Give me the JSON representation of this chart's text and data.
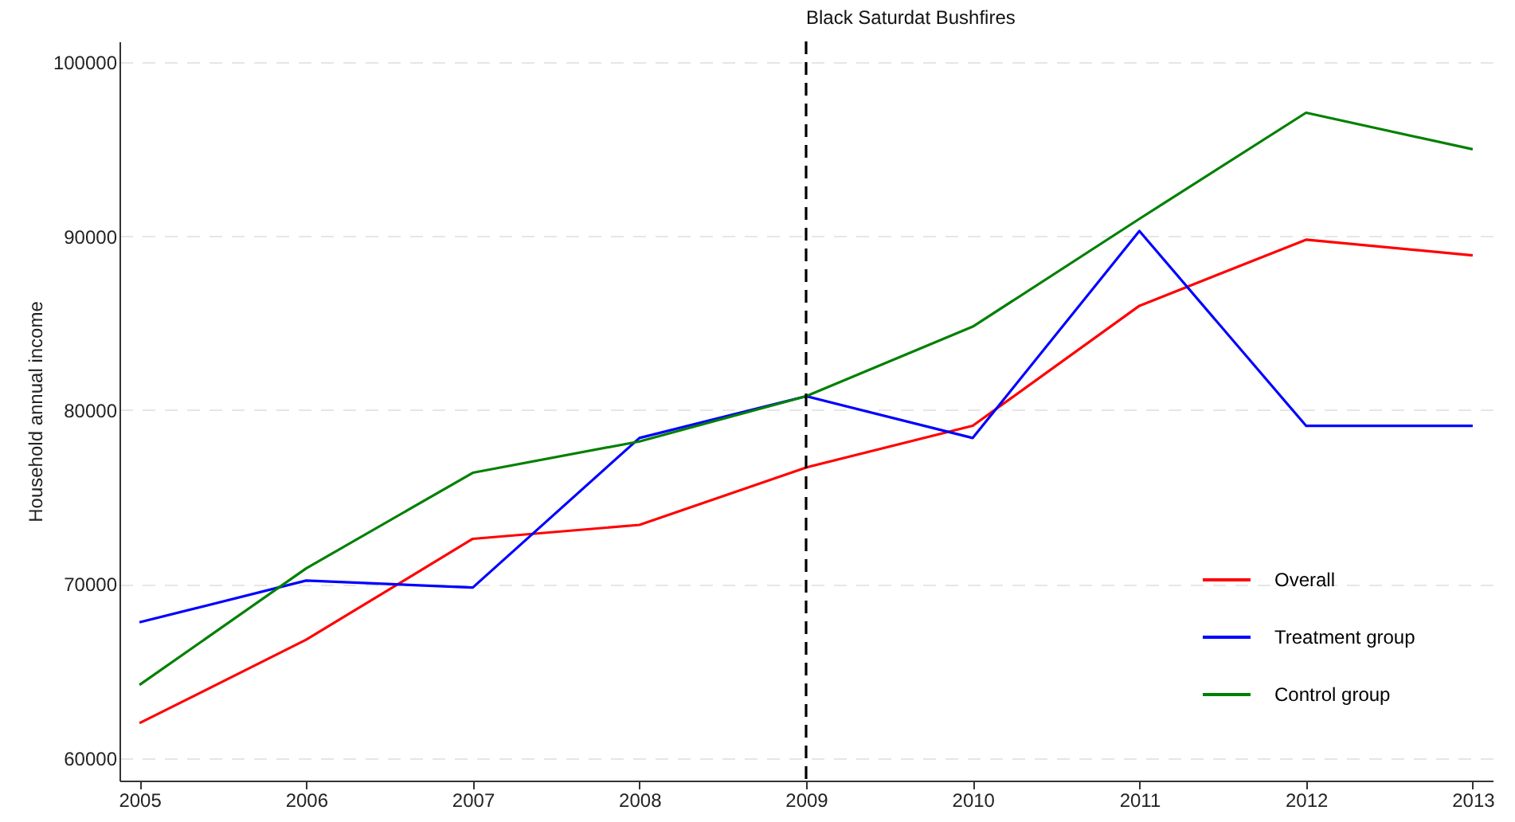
{
  "chart_data": {
    "type": "line",
    "ylabel": "Household annual income",
    "x": [
      2005,
      2006,
      2007,
      2008,
      2009,
      2010,
      2011,
      2012,
      2013
    ],
    "series": [
      {
        "name": "Overall",
        "color": "#ff0000",
        "values": [
          62000,
          66800,
          72600,
          73400,
          76700,
          79100,
          86000,
          89800,
          88900
        ]
      },
      {
        "name": "Treatment group",
        "color": "#0000ff",
        "values": [
          67800,
          70200,
          69800,
          78400,
          80800,
          78400,
          90300,
          79100,
          79100
        ]
      },
      {
        "name": "Control group",
        "color": "#008000",
        "values": [
          64200,
          70900,
          76400,
          78200,
          80800,
          84800,
          91000,
          97100,
          95000
        ]
      }
    ],
    "xlim": [
      2004.88,
      2013.12
    ],
    "xticks": [
      2005,
      2006,
      2007,
      2008,
      2009,
      2010,
      2011,
      2012,
      2013
    ],
    "ylim": [
      58700,
      101200
    ],
    "yticks": [
      60000,
      70000,
      80000,
      90000,
      100000
    ],
    "ref_lines": [
      {
        "axis": "x",
        "value": 2009,
        "label": "Black Saturdat Bushfires",
        "color": "#000000",
        "line_style": "dashed"
      }
    ],
    "grid": "y",
    "legend": "bottom right",
    "marker": "none",
    "line_style": "solid"
  }
}
